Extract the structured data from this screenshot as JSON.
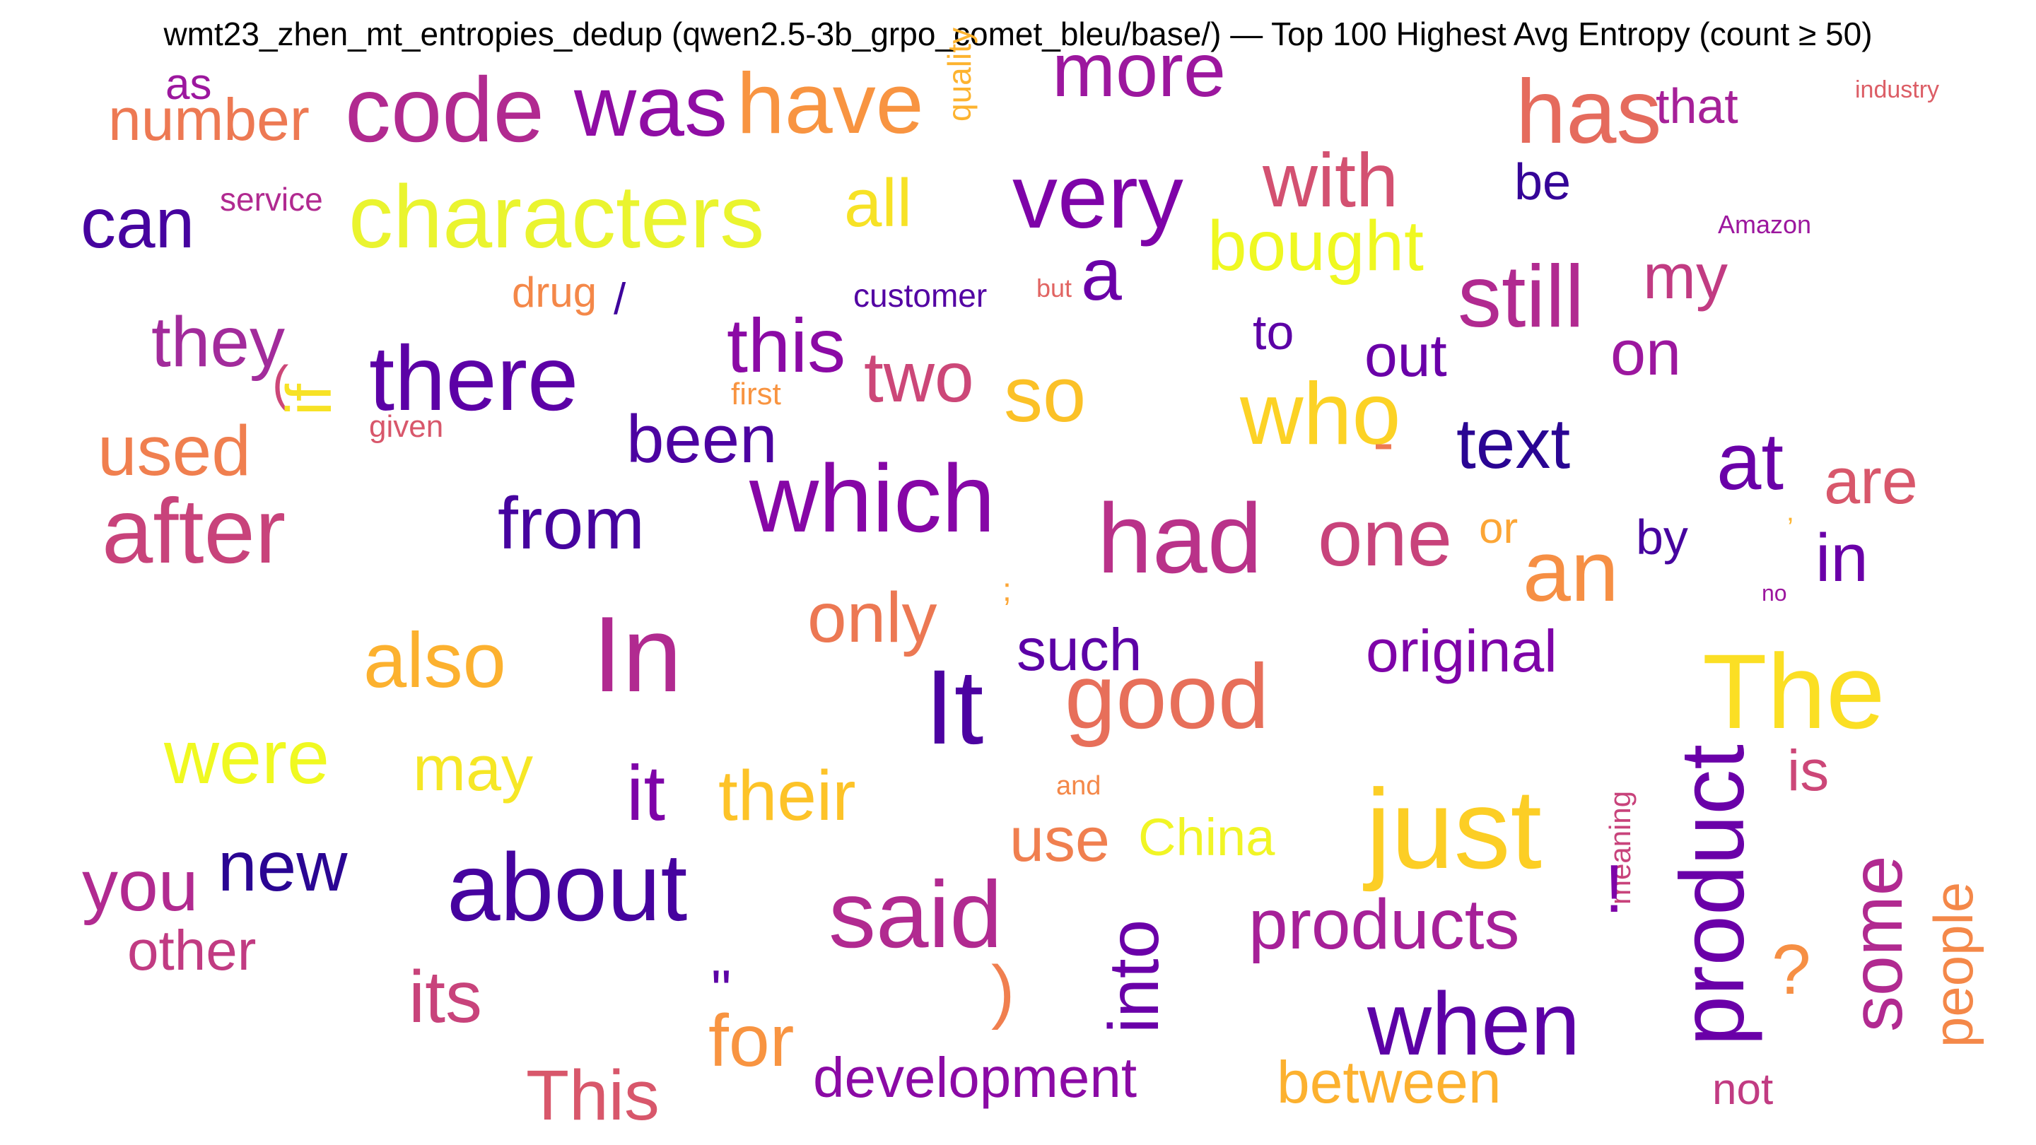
{
  "title": "wmt23_zhen_mt_entropies_dedup (qwen2.5-3b_grpo_comet_bleu/base/) — Top 100 Highest Avg Entropy (count ≥ 50)",
  "words": [
    {
      "t": "as",
      "c": "#9c179e"
    },
    {
      "t": "number",
      "c": "#ed7953"
    },
    {
      "t": "code",
      "c": "#b12a90"
    },
    {
      "t": "was",
      "c": "#8f0da4"
    },
    {
      "t": "have",
      "c": "#f89441"
    },
    {
      "t": "quality",
      "c": "#fdb32f"
    },
    {
      "t": "more",
      "c": "#9c179e"
    },
    {
      "t": "has",
      "c": "#e56b5d"
    },
    {
      "t": "that",
      "c": "#a62098"
    },
    {
      "t": "industry",
      "c": "#dc5e66"
    },
    {
      "t": "characters",
      "c": "#eaf42f"
    },
    {
      "t": "all",
      "c": "#f7e225"
    },
    {
      "t": "very",
      "c": "#7e03a8"
    },
    {
      "t": "with",
      "c": "#d35171"
    },
    {
      "t": "be",
      "c": "#350498"
    },
    {
      "t": "can",
      "c": "#46039f"
    },
    {
      "t": "service",
      "c": "#b12a90"
    },
    {
      "t": "bought",
      "c": "#eff821"
    },
    {
      "t": "Amazon",
      "c": "#9c179e"
    },
    {
      "t": "drug",
      "c": "#f48849"
    },
    {
      "t": "/",
      "c": "#3e049c"
    },
    {
      "t": "customer",
      "c": "#5302a3"
    },
    {
      "t": "but",
      "c": "#e16462"
    },
    {
      "t": "a",
      "c": "#6a00a8"
    },
    {
      "t": "still",
      "c": "#b12a90"
    },
    {
      "t": "my",
      "c": "#c13b82"
    },
    {
      "t": "they",
      "c": "#a22b9b"
    },
    {
      "t": "(",
      "c": "#cc4778"
    },
    {
      "t": "if",
      "c": "#f7e225"
    },
    {
      "t": "there",
      "c": "#5c01a6"
    },
    {
      "t": "given",
      "c": "#d8576b"
    },
    {
      "t": "this",
      "c": "#8b0aa5"
    },
    {
      "t": "two",
      "c": "#cc4778"
    },
    {
      "t": "first",
      "c": "#f89441"
    },
    {
      "t": "so",
      "c": "#fbc127"
    },
    {
      "t": "to",
      "c": "#5c01a6"
    },
    {
      "t": "out",
      "c": "#6a00a8"
    },
    {
      "t": "on",
      "c": "#9c179e"
    },
    {
      "t": "who",
      "c": "#fcd225"
    },
    {
      "t": "-",
      "c": "#ed7953"
    },
    {
      "t": "text",
      "c": "#2a0593"
    },
    {
      "t": "used",
      "c": "#f07f4f"
    },
    {
      "t": "been",
      "c": "#4c02a1"
    },
    {
      "t": "at",
      "c": "#6a00a8"
    },
    {
      "t": "are",
      "c": "#d8576b"
    },
    {
      "t": "after",
      "c": "#c8437b"
    },
    {
      "t": "from",
      "c": "#46039f"
    },
    {
      "t": "which",
      "c": "#8606a6"
    },
    {
      "t": "had",
      "c": "#b93289"
    },
    {
      "t": "one",
      "c": "#c8437b"
    },
    {
      "t": "or",
      "c": "#fca636"
    },
    {
      "t": "by",
      "c": "#46039f"
    },
    {
      "t": "’",
      "c": "#fdb42f"
    },
    {
      "t": "in",
      "c": "#6a00a8"
    },
    {
      "t": "an",
      "c": "#f68f44"
    },
    {
      "t": "no",
      "c": "#9c179e"
    },
    {
      "t": ";",
      "c": "#fca636"
    },
    {
      "t": "only",
      "c": "#ec7853"
    },
    {
      "t": "In",
      "c": "#b12a90"
    },
    {
      "t": "also",
      "c": "#fcb12f"
    },
    {
      "t": "such",
      "c": "#5c01a6"
    },
    {
      "t": "It",
      "c": "#4c02a1"
    },
    {
      "t": "good",
      "c": "#e76f5a"
    },
    {
      "t": "original",
      "c": "#7e03a8"
    },
    {
      "t": "The",
      "c": "#fbdf24"
    },
    {
      "t": "were",
      "c": "#f0f921"
    },
    {
      "t": "may",
      "c": "#f6e726"
    },
    {
      "t": "it",
      "c": "#7e03a8"
    },
    {
      "t": "their",
      "c": "#fdc328"
    },
    {
      "t": "and",
      "c": "#f48849"
    },
    {
      "t": "just",
      "c": "#fcce25"
    },
    {
      "t": "is",
      "c": "#cc4778"
    },
    {
      "t": "meaning",
      "c": "#c8437b"
    },
    {
      "t": "product",
      "c": "#6a00a8"
    },
    {
      "t": "use",
      "c": "#f07f4f"
    },
    {
      "t": "China",
      "c": "#f1f525"
    },
    {
      "t": "you",
      "c": "#b12a90"
    },
    {
      "t": "new",
      "c": "#2a0593"
    },
    {
      "t": "about",
      "c": "#46039f"
    },
    {
      "t": "said",
      "c": "#b12a90"
    },
    {
      "t": "!",
      "c": "#7e03a8"
    },
    {
      "t": "some",
      "c": "#b12a90"
    },
    {
      "t": "people",
      "c": "#f48849"
    },
    {
      "t": "other",
      "c": "#c13b82"
    },
    {
      "t": "into",
      "c": "#6a00a8"
    },
    {
      "t": "products",
      "c": "#a62098"
    },
    {
      "t": "its",
      "c": "#c8437b"
    },
    {
      "t": ")",
      "c": "#f07f4f"
    },
    {
      "t": "\"",
      "c": "#5c01a6"
    },
    {
      "t": "?",
      "c": "#f68f44"
    },
    {
      "t": "for",
      "c": "#f89441"
    },
    {
      "t": "when",
      "c": "#5c01a6"
    },
    {
      "t": "development",
      "c": "#8b0aa5"
    },
    {
      "t": "between",
      "c": "#fcb12f"
    },
    {
      "t": "not",
      "c": "#c13b82"
    },
    {
      "t": "This",
      "c": "#d8576b"
    }
  ]
}
